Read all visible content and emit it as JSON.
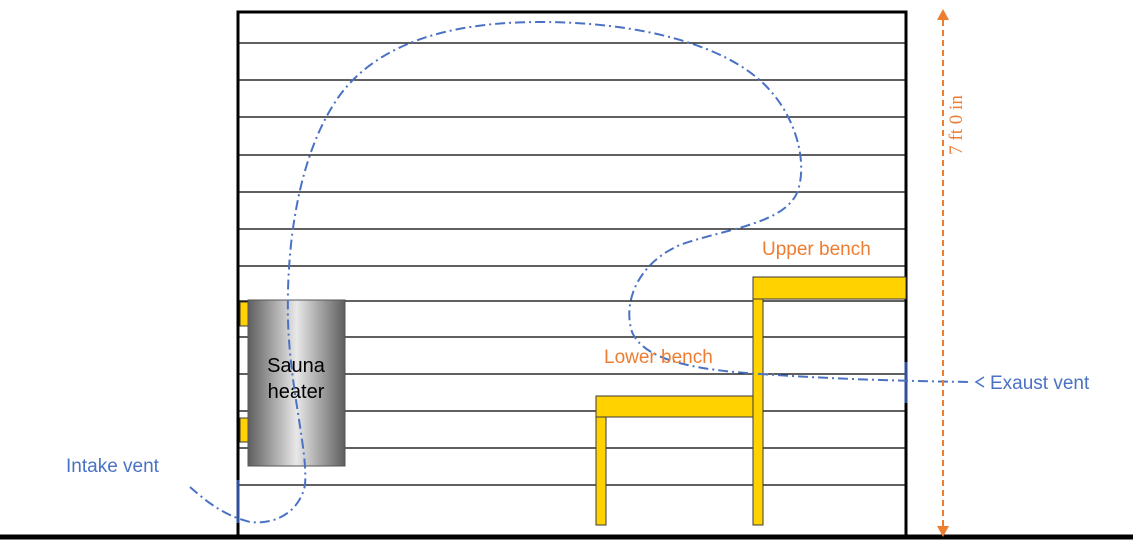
{
  "labels": {
    "heater_line1": "Sauna",
    "heater_line2": "heater",
    "upper_bench": "Upper bench",
    "lower_bench": "Lower bench",
    "intake_vent": "Intake vent",
    "exhaust_vent": "Exaust vent",
    "height": "7 ft 0 in"
  },
  "colors": {
    "wall": "#000000",
    "plank_line": "#000000",
    "bench": "#ffd200",
    "bench_outline": "#3a3a3a",
    "heater_dark": "#5e5e5e",
    "heater_light": "#e8e8e8",
    "airflow": "#4a72c4",
    "vent_label": "#4a72c4",
    "bench_label": "#ed7d31",
    "dimension": "#ed7d31"
  },
  "icons": {
    "dimension_arrow": "double-headed-arrow"
  }
}
